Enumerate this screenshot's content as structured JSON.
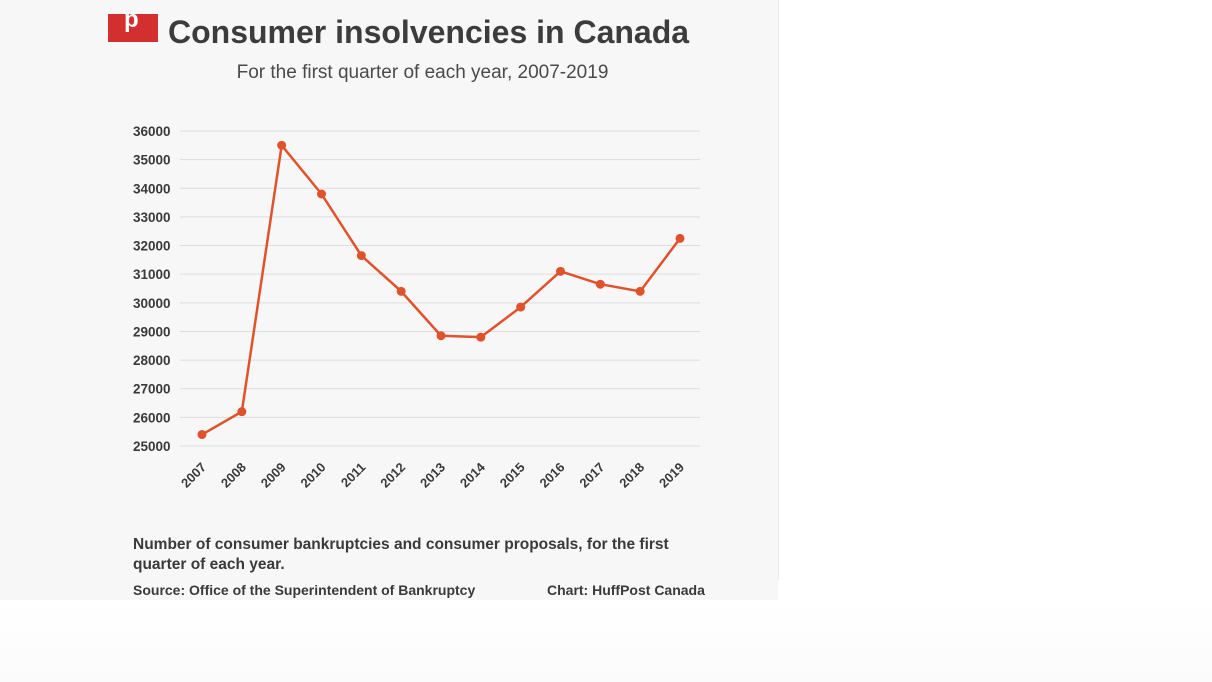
{
  "header": {
    "logo_text": "p",
    "title": "Consumer insolvencies in Canada",
    "subtitle": "For the first quarter of each year, 2007-2019"
  },
  "colors": {
    "line": "#e0522b",
    "logo": "#d32f2f",
    "grid": "#dddddd",
    "text": "#3a3a3a"
  },
  "chart_data": {
    "type": "line",
    "x": [
      "2007",
      "2008",
      "2009",
      "2010",
      "2011",
      "2012",
      "2013",
      "2014",
      "2015",
      "2016",
      "2017",
      "2018",
      "2019"
    ],
    "series": [
      {
        "values": [
          25400,
          26200,
          35500,
          33800,
          31650,
          30400,
          28850,
          28800,
          29850,
          31100,
          30650,
          30400,
          32250
        ]
      }
    ],
    "yticks": [
      25000,
      26000,
      27000,
      28000,
      29000,
      30000,
      31000,
      32000,
      33000,
      34000,
      35000,
      36000
    ],
    "ylim": [
      25000,
      36000
    ],
    "grid": true,
    "xlabel": "",
    "ylabel": ""
  },
  "footer": {
    "caption": "Number of consumer bankruptcies and consumer proposals, for the first quarter of each year.",
    "source": "Source: Office of the Superintendent of Bankruptcy",
    "credit": "Chart: HuffPost Canada"
  }
}
